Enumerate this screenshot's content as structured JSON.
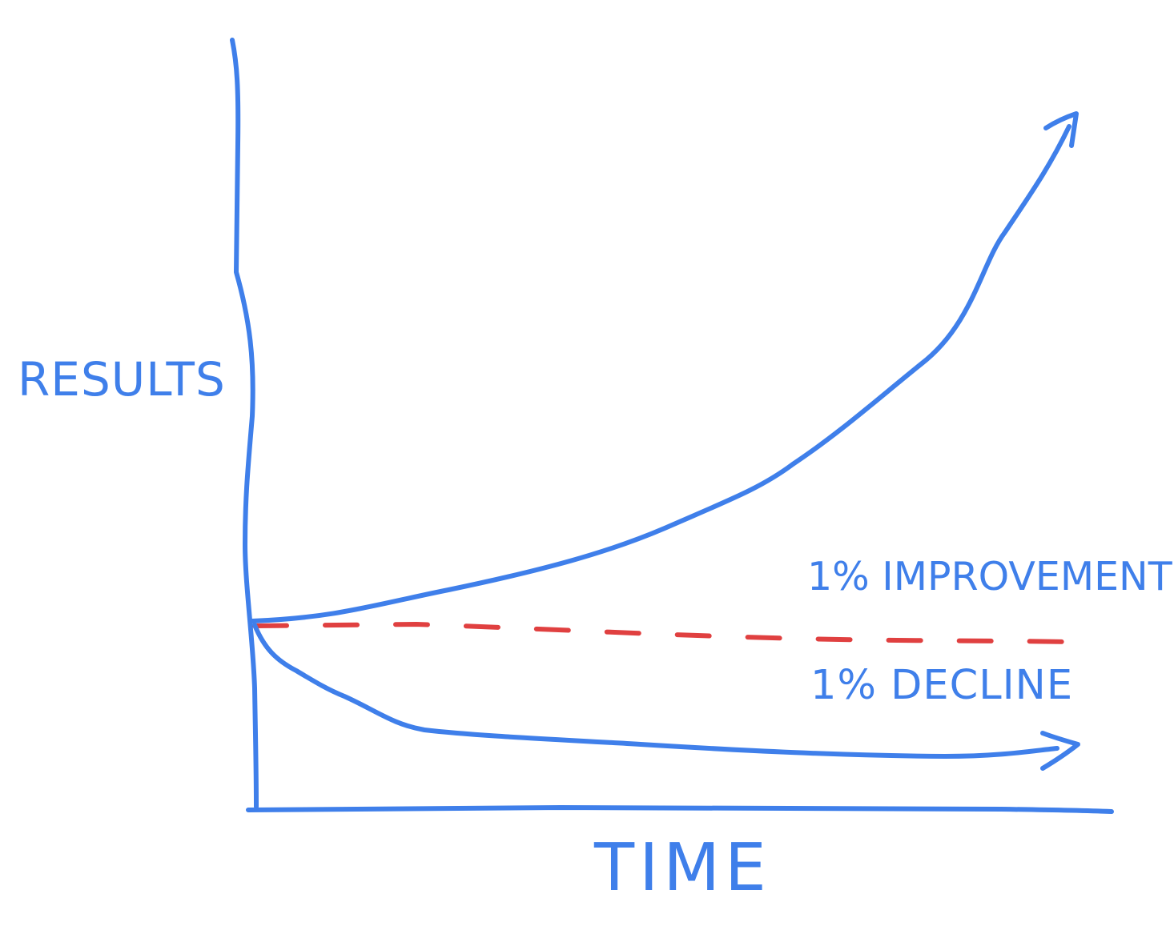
{
  "chart_data": {
    "type": "line",
    "xlabel": "TIME",
    "ylabel": "RESULTS",
    "grid": false,
    "colors": {
      "axis": "#3f7fea",
      "baseline": "#e04040",
      "curve": "#3f7fea"
    },
    "series": [
      {
        "name": "1% IMPROVEMENT",
        "style": "solid",
        "shape": "exponential growth",
        "endpoint": "arrow"
      },
      {
        "style": "dashed",
        "shape": "flat",
        "color": "#e04040"
      },
      {
        "name": "1% DECLINE",
        "style": "solid",
        "shape": "exponential decay",
        "endpoint": "arrow"
      }
    ]
  }
}
